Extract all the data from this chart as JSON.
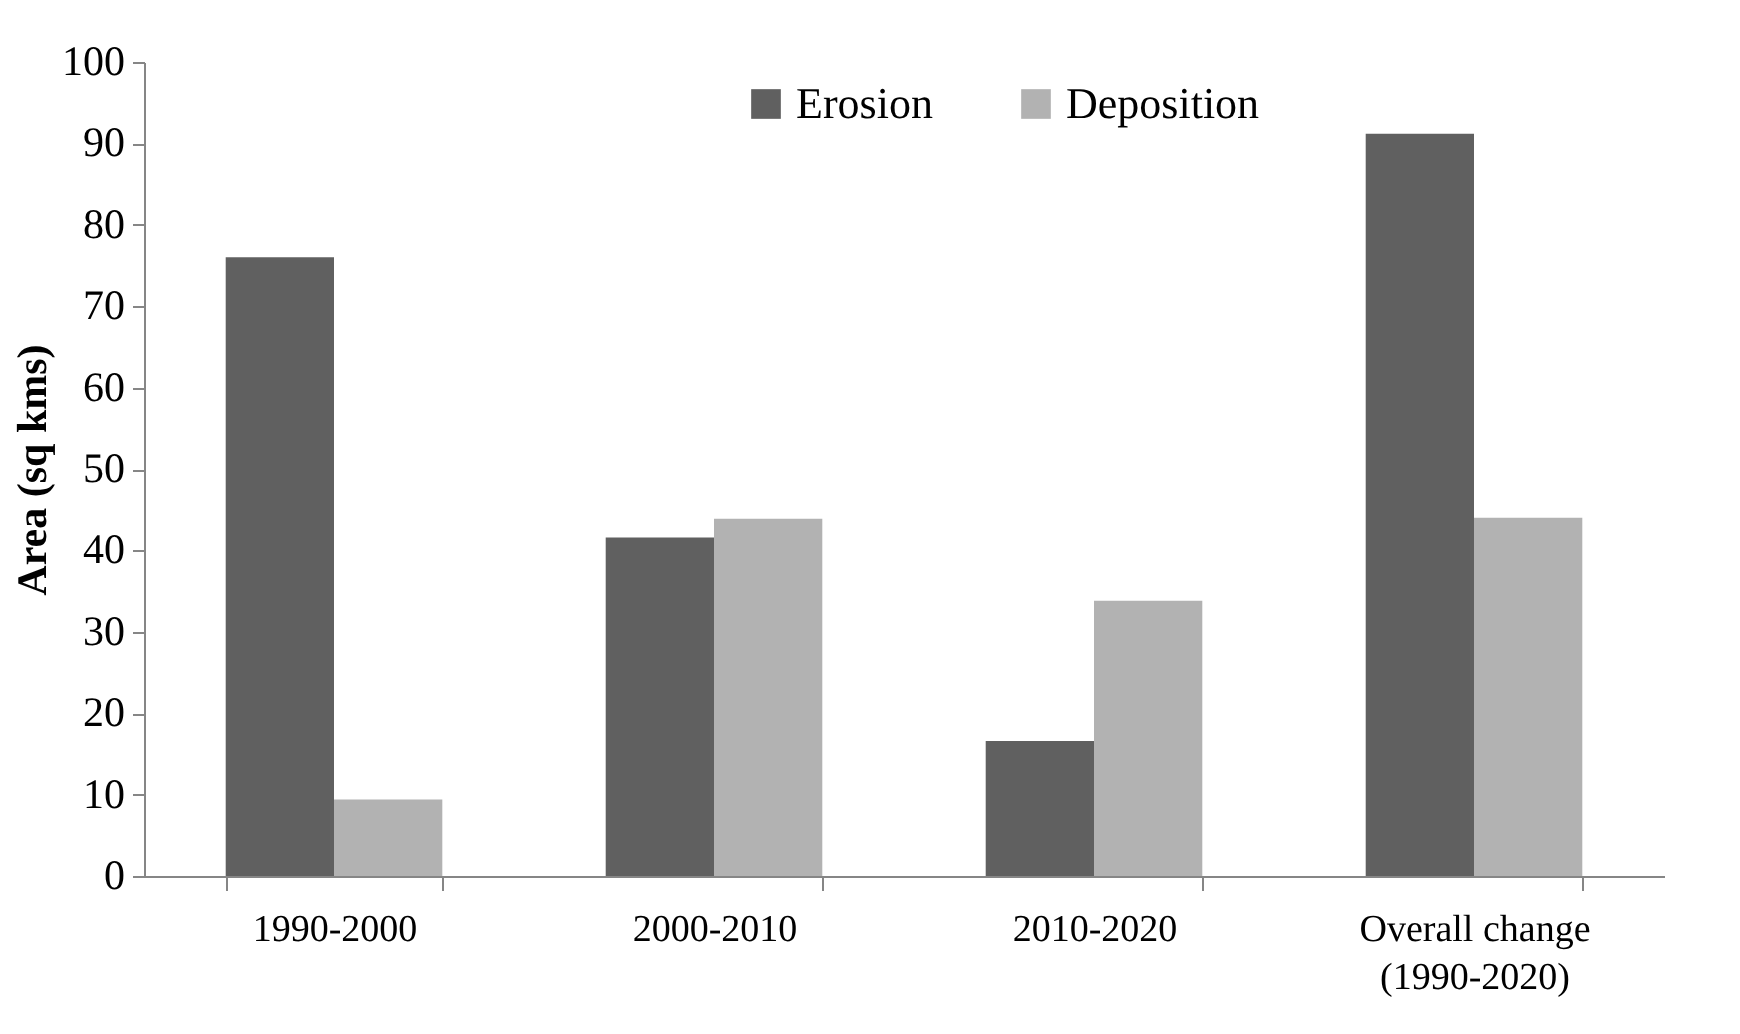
{
  "chart_data": {
    "type": "bar",
    "ylabel": "Area (sq kms)",
    "categories": [
      "1990-2000",
      "2000-2010",
      "2010-2020",
      "Overall change\n(1990-2020)"
    ],
    "series": [
      {
        "name": "Erosion",
        "color": "#606060",
        "values": [
          76.0,
          41.6,
          16.6,
          91.2
        ]
      },
      {
        "name": "Deposition",
        "color": "#b2b2b2",
        "values": [
          9.4,
          43.9,
          33.8,
          44.0
        ]
      }
    ],
    "ylim": [
      0,
      100
    ],
    "yticks": [
      0,
      10,
      20,
      30,
      40,
      50,
      60,
      70,
      80,
      90,
      100
    ],
    "grid": false,
    "legend": "top"
  }
}
